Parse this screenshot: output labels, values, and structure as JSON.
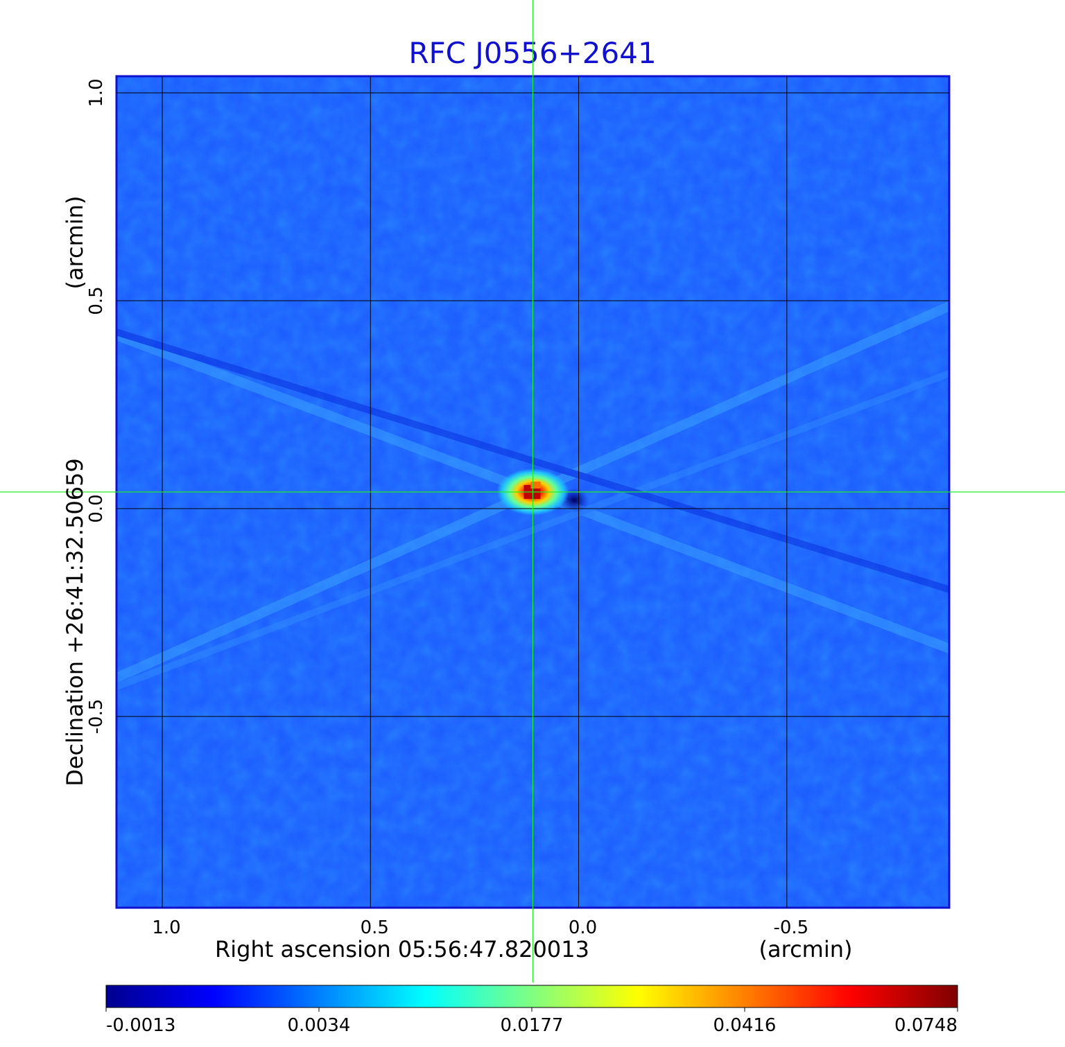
{
  "chart_data": {
    "type": "heatmap",
    "title": "RFC J0556+2641",
    "xlabel": "Right ascension  05:56:47.820013",
    "xunit": "(arcmin)",
    "ylabel": "Declination  +26:41:32.50659",
    "yunit": "(arcmin)",
    "x_ticks": [
      "1.0",
      "0.5",
      "0.0",
      "-0.5"
    ],
    "y_ticks": [
      "1.0",
      "0.5",
      "0.0",
      "-0.5"
    ],
    "x_tick_values": [
      1.0,
      0.5,
      0.0,
      -0.5
    ],
    "y_tick_values": [
      1.0,
      0.5,
      0.0,
      -0.5
    ],
    "xlim": [
      1.11,
      -0.89
    ],
    "ylim": [
      -0.96,
      1.04
    ],
    "grid": true,
    "crosshair": {
      "x": 0.11,
      "y": 0.04
    },
    "colorbar": {
      "orientation": "horizontal",
      "colormap": "jet",
      "tick_labels": [
        "-0.0013",
        "0.0034",
        "0.0177",
        "0.0416",
        "0.0748"
      ],
      "range": [
        -0.0013,
        0.0748
      ]
    },
    "source": {
      "ra_offset": 0.11,
      "dec_offset": 0.04,
      "peak": 0.0748
    },
    "colors": {
      "title": "#1010d0",
      "grid": "#000000",
      "crosshair": "#22ee22",
      "background_field": "#1a5cff"
    }
  }
}
